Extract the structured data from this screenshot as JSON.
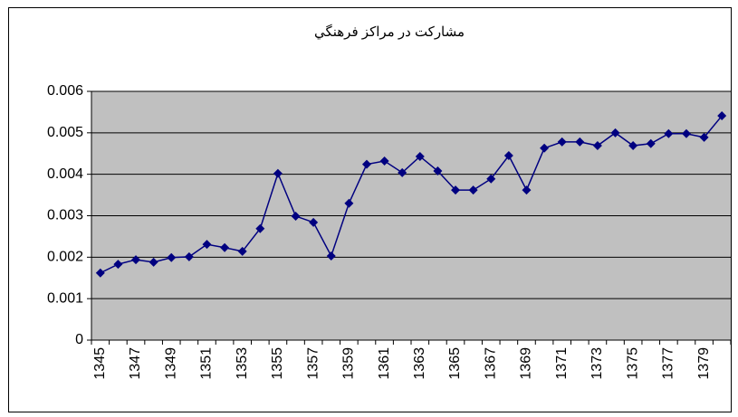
{
  "chart_data": {
    "type": "line",
    "title": "مشارکت در مراکز فرهنگي",
    "categories": [
      "1345",
      null,
      "1347",
      null,
      "1349",
      null,
      "1351",
      null,
      "1353",
      null,
      "1355",
      null,
      "1357",
      null,
      "1359",
      null,
      "1361",
      null,
      "1363",
      null,
      "1365",
      null,
      "1367",
      null,
      "1369",
      null,
      "1371",
      null,
      "1373",
      null,
      "1375",
      null,
      "1377",
      null,
      "1379",
      null
    ],
    "series": [
      {
        "color": "#000080",
        "values": [
          0.00162,
          0.00183,
          0.00194,
          0.00188,
          0.00199,
          0.00201,
          0.00231,
          0.00223,
          0.00214,
          0.00269,
          0.00402,
          0.00299,
          0.00284,
          0.00203,
          0.0033,
          0.00424,
          0.00432,
          0.00404,
          0.00443,
          0.00408,
          0.00362,
          0.00362,
          0.00389,
          0.00445,
          0.00362,
          0.00463,
          0.00478,
          0.00478,
          0.00469,
          0.005,
          0.00469,
          0.00474,
          0.00498,
          0.00498,
          0.00489,
          0.00541
        ]
      }
    ],
    "ylim": [
      0,
      0.006
    ],
    "yticks": [
      0,
      0.001,
      0.002,
      0.003,
      0.004,
      0.005,
      0.006
    ],
    "grid": true,
    "plot_background": "#c0c0c0"
  }
}
